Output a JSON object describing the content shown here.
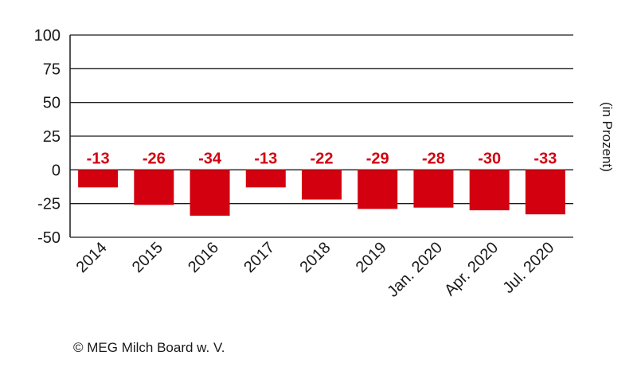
{
  "chart_data": {
    "type": "bar",
    "categories": [
      "2014",
      "2015",
      "2016",
      "2017",
      "2018",
      "2019",
      "Jan. 2020",
      "Apr. 2020",
      "Jul. 2020"
    ],
    "values": [
      -13,
      -26,
      -34,
      -13,
      -22,
      -29,
      -28,
      -30,
      -33
    ],
    "data_labels": [
      "-13",
      "-26",
      "-34",
      "-13",
      "-22",
      "-29",
      "-28",
      "-30",
      "-33"
    ],
    "ylabel": "(in Prozent)",
    "ylim": [
      -50,
      100
    ],
    "yticks": [
      100,
      75,
      50,
      25,
      0,
      -25,
      -50
    ],
    "ytick_labels": [
      "100",
      "75",
      "50",
      "25",
      "0",
      "-25",
      "-50"
    ],
    "grid": true,
    "bar_color": "#d3000f",
    "label_color": "#d3000f"
  },
  "source": "© MEG Milch Board w. V."
}
